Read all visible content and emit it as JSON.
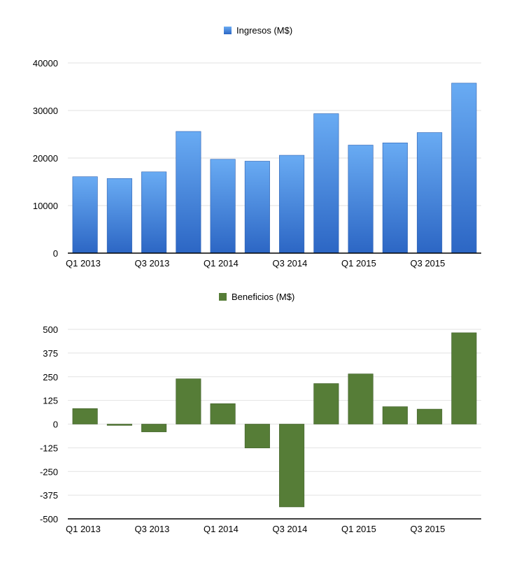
{
  "chart_data": [
    {
      "type": "bar",
      "legend_position": "top-center",
      "grid": true,
      "color": "#4a8ee0",
      "categories": [
        "Q1 2013",
        "Q2 2013",
        "Q3 2013",
        "Q4 2013",
        "Q1 2014",
        "Q2 2014",
        "Q3 2014",
        "Q4 2014",
        "Q1 2015",
        "Q2 2015",
        "Q3 2015",
        "Q4 2015"
      ],
      "series": [
        {
          "name": "Ingresos (M$)",
          "values": [
            16070,
            15700,
            17090,
            25590,
            19740,
            19340,
            20580,
            29330,
            22720,
            23190,
            25360,
            35750
          ]
        }
      ],
      "ylim": [
        0,
        40000
      ],
      "yticks": [
        "0",
        "10000",
        "20000",
        "30000",
        "40000"
      ],
      "xtick_labels": [
        "Q1 2013",
        "Q3 2013",
        "Q1 2014",
        "Q3 2014",
        "Q1 2015",
        "Q3 2015"
      ]
    },
    {
      "type": "bar",
      "legend_position": "top-center",
      "grid": true,
      "color": "#567d37",
      "categories": [
        "Q1 2013",
        "Q2 2013",
        "Q3 2013",
        "Q4 2013",
        "Q1 2014",
        "Q2 2014",
        "Q3 2014",
        "Q4 2014",
        "Q1 2015",
        "Q2 2015",
        "Q3 2015",
        "Q4 2015"
      ],
      "series": [
        {
          "name": "Beneficios (M$)",
          "values": [
            82,
            -7,
            -41,
            239,
            108,
            -126,
            -437,
            214,
            265,
            92,
            79,
            482
          ]
        }
      ],
      "ylim": [
        -500,
        500
      ],
      "yticks": [
        "-500",
        "-375",
        "-250",
        "-125",
        "0",
        "125",
        "250",
        "375",
        "500"
      ],
      "xtick_labels": [
        "Q1 2013",
        "Q3 2013",
        "Q1 2014",
        "Q3 2014",
        "Q1 2015",
        "Q3 2015"
      ]
    }
  ]
}
